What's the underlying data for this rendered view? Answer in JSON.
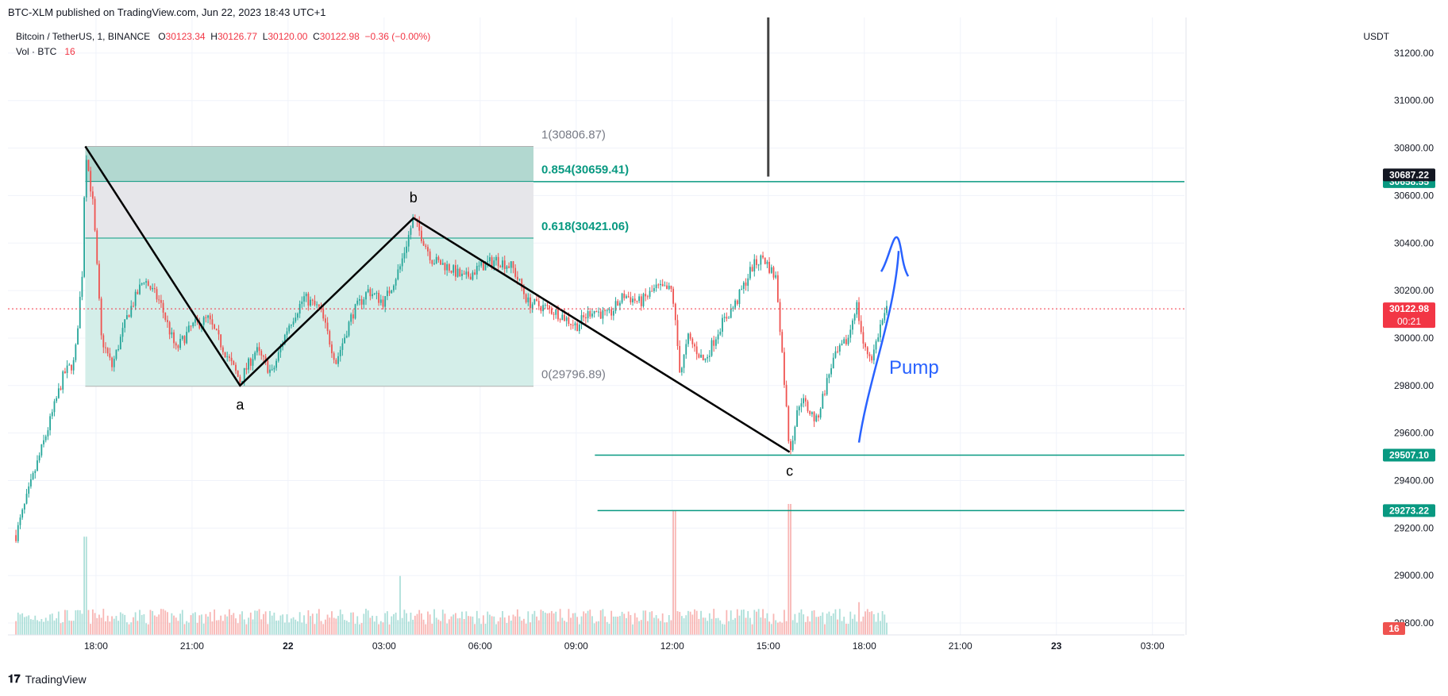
{
  "publish_line": "BTC-XLM published on TradingView.com, Jun 22, 2023 18:43 UTC+1",
  "legend": {
    "symbol": "Bitcoin / TetherUS, 1, BINANCE",
    "o_label": "O",
    "o_value": "30123.34",
    "h_label": "H",
    "h_value": "30126.77",
    "l_label": "L",
    "l_value": "30120.00",
    "c_label": "C",
    "c_value": "30122.98",
    "change": "−0.36 (−0.00%)",
    "vol_label": "Vol · BTC",
    "vol_value": "16"
  },
  "brand": "TradingView",
  "colors": {
    "up": "#26a69a",
    "down": "#ef5350",
    "level_line": "#089981",
    "fib_top_fill": "#b2d8d0",
    "fib_mid_fill": "#e6e6ea",
    "fib_low_fill": "#d4eee9",
    "pattern_line": "#000000",
    "annotation_blue": "#2962ff",
    "last_price": "#f23645"
  },
  "chart_data": {
    "type": "candlestick",
    "price_axis": {
      "currency": "USDT",
      "ticks": [
        "31200.00",
        "31000.00",
        "30800.00",
        "30600.00",
        "30400.00",
        "30200.00",
        "30000.00",
        "29800.00",
        "29600.00",
        "29400.00",
        "29200.00",
        "29000.00",
        "28800.00"
      ],
      "ylim": [
        28750,
        31350
      ]
    },
    "time_axis": {
      "ticks": [
        "18:00",
        "21:00",
        "22",
        "03:00",
        "06:00",
        "09:00",
        "12:00",
        "15:00",
        "18:00",
        "21:00",
        "23",
        "03:00"
      ],
      "bold_ticks": [
        "22",
        "23"
      ],
      "range": [
        "Jun 21 15:15",
        "Jun 23 04:00"
      ]
    },
    "price_series": [
      {
        "t": "Jun 21 15:30",
        "p": 29170
      },
      {
        "t": "Jun 21 16:00",
        "p": 29400
      },
      {
        "t": "Jun 21 16:30",
        "p": 29620
      },
      {
        "t": "Jun 21 17:00",
        "p": 29850
      },
      {
        "t": "Jun 21 17:20",
        "p": 29900
      },
      {
        "t": "Jun 21 17:35",
        "p": 30300
      },
      {
        "t": "Jun 21 17:40",
        "p": 30807
      },
      {
        "t": "Jun 21 17:55",
        "p": 30550
      },
      {
        "t": "Jun 21 18:10",
        "p": 30000
      },
      {
        "t": "Jun 21 18:30",
        "p": 29880
      },
      {
        "t": "Jun 21 19:00",
        "p": 30100
      },
      {
        "t": "Jun 21 19:30",
        "p": 30250
      },
      {
        "t": "Jun 21 20:00",
        "p": 30150
      },
      {
        "t": "Jun 21 20:30",
        "p": 29950
      },
      {
        "t": "Jun 21 21:00",
        "p": 30050
      },
      {
        "t": "Jun 21 21:30",
        "p": 30080
      },
      {
        "t": "Jun 21 22:00",
        "p": 29950
      },
      {
        "t": "Jun 21 22:30",
        "p": 29820
      },
      {
        "t": "Jun 21 23:00",
        "p": 29950
      },
      {
        "t": "Jun 21 23:30",
        "p": 29850
      },
      {
        "t": "Jun 22 00:00",
        "p": 30050
      },
      {
        "t": "Jun 22 00:30",
        "p": 30170
      },
      {
        "t": "Jun 22 01:00",
        "p": 30120
      },
      {
        "t": "Jun 22 01:30",
        "p": 29900
      },
      {
        "t": "Jun 22 02:00",
        "p": 30100
      },
      {
        "t": "Jun 22 02:30",
        "p": 30200
      },
      {
        "t": "Jun 22 03:00",
        "p": 30150
      },
      {
        "t": "Jun 22 03:30",
        "p": 30300
      },
      {
        "t": "Jun 22 03:55",
        "p": 30505
      },
      {
        "t": "Jun 22 04:30",
        "p": 30330
      },
      {
        "t": "Jun 22 05:00",
        "p": 30300
      },
      {
        "t": "Jun 22 05:30",
        "p": 30250
      },
      {
        "t": "Jun 22 06:00",
        "p": 30300
      },
      {
        "t": "Jun 22 06:30",
        "p": 30330
      },
      {
        "t": "Jun 22 07:00",
        "p": 30300
      },
      {
        "t": "Jun 22 07:30",
        "p": 30150
      },
      {
        "t": "Jun 22 08:00",
        "p": 30130
      },
      {
        "t": "Jun 22 08:30",
        "p": 30100
      },
      {
        "t": "Jun 22 09:00",
        "p": 30050
      },
      {
        "t": "Jun 22 09:30",
        "p": 30120
      },
      {
        "t": "Jun 22 10:00",
        "p": 30090
      },
      {
        "t": "Jun 22 10:30",
        "p": 30180
      },
      {
        "t": "Jun 22 11:00",
        "p": 30150
      },
      {
        "t": "Jun 22 11:30",
        "p": 30210
      },
      {
        "t": "Jun 22 12:00",
        "p": 30200
      },
      {
        "t": "Jun 22 12:15",
        "p": 29850
      },
      {
        "t": "Jun 22 12:30",
        "p": 30000
      },
      {
        "t": "Jun 22 13:00",
        "p": 29900
      },
      {
        "t": "Jun 22 13:30",
        "p": 30050
      },
      {
        "t": "Jun 22 14:00",
        "p": 30150
      },
      {
        "t": "Jun 22 14:30",
        "p": 30300
      },
      {
        "t": "Jun 22 14:50",
        "p": 30340
      },
      {
        "t": "Jun 22 15:15",
        "p": 30250
      },
      {
        "t": "Jun 22 15:30",
        "p": 29820
      },
      {
        "t": "Jun 22 15:40",
        "p": 29520
      },
      {
        "t": "Jun 22 16:00",
        "p": 29750
      },
      {
        "t": "Jun 22 16:30",
        "p": 29650
      },
      {
        "t": "Jun 22 17:00",
        "p": 29900
      },
      {
        "t": "Jun 22 17:30",
        "p": 30000
      },
      {
        "t": "Jun 22 17:45",
        "p": 30150
      },
      {
        "t": "Jun 22 18:00",
        "p": 29950
      },
      {
        "t": "Jun 22 18:15",
        "p": 29920
      },
      {
        "t": "Jun 22 18:30",
        "p": 30050
      },
      {
        "t": "Jun 22 18:43",
        "p": 30123
      }
    ],
    "volume_spikes": [
      {
        "t": "Jun 21 17:40",
        "v": 0.75
      },
      {
        "t": "Jun 22 03:30",
        "v": 0.45
      },
      {
        "t": "Jun 22 12:05",
        "v": 0.95
      },
      {
        "t": "Jun 22 15:40",
        "v": 1.0
      },
      {
        "t": "Jun 22 17:50",
        "v": 0.25
      }
    ],
    "fib_retracement": {
      "start": "Jun 21 17:40",
      "end": "Jun 22 07:40",
      "levels": [
        {
          "ratio": "1",
          "price": 30806.87,
          "label": "1(30806.87)"
        },
        {
          "ratio": "0.854",
          "price": 30659.41,
          "label": "0.854(30659.41)"
        },
        {
          "ratio": "0.618",
          "price": 30421.06,
          "label": "0.618(30421.06)"
        },
        {
          "ratio": "0",
          "price": 29796.89,
          "label": "0(29796.89)"
        }
      ]
    },
    "abc_pattern": [
      {
        "label": "",
        "t": "Jun 21 17:40",
        "p": 30807
      },
      {
        "label": "a",
        "t": "Jun 21 22:30",
        "p": 29800
      },
      {
        "label": "b",
        "t": "Jun 22 03:55",
        "p": 30505
      },
      {
        "label": "c",
        "t": "Jun 22 15:40",
        "p": 29520
      }
    ],
    "horizontal_levels": [
      {
        "price": 30658.55,
        "label": "30658.55",
        "from": "Jun 22 07:40"
      },
      {
        "price": 29507.1,
        "label": "29507.10",
        "from": "Jun 22 09:35"
      },
      {
        "price": 29273.22,
        "label": "29273.22",
        "from": "Jun 22 09:40"
      }
    ],
    "vertical_marker": {
      "t": "Jun 22 15:00",
      "p_top": 31350,
      "p_bottom": 30680
    },
    "price_labels": [
      {
        "price": 30687.22,
        "label": "30687.22",
        "style": "dark"
      },
      {
        "price": 30122.98,
        "label": "30122.98",
        "sub": "00:21",
        "style": "last"
      }
    ],
    "volume_label": "16",
    "annotations": [
      {
        "text": "Pump"
      }
    ]
  }
}
